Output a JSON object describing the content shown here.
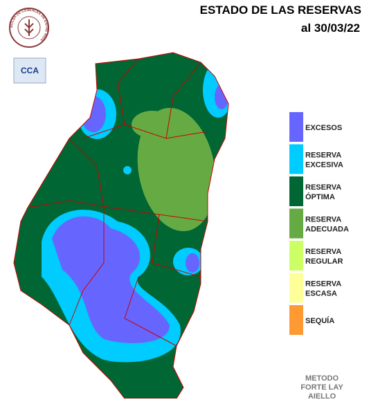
{
  "header": {
    "title": "ESTADO DE LAS RESERVAS",
    "date": "al 30/03/22"
  },
  "logos": {
    "bolsa": "BOLSA DE CEREALES DE ENTRE RIOS",
    "cca": "CCA"
  },
  "legend": [
    {
      "lines": [
        "EXCESOS"
      ],
      "color": "#6666ff"
    },
    {
      "lines": [
        "RESERVA",
        "EXCESIVA"
      ],
      "color": "#00ccff"
    },
    {
      "lines": [
        "RESERVA",
        "ÓPTIMA"
      ],
      "color": "#006633"
    },
    {
      "lines": [
        "RESERVA",
        "ADECUADA"
      ],
      "color": "#66aa44"
    },
    {
      "lines": [
        "RESERVA",
        "REGULAR"
      ],
      "color": "#ccff66"
    },
    {
      "lines": [
        "RESERVA",
        "ESCASA"
      ],
      "color": "#ffff99"
    },
    {
      "lines": [
        "SEQUÍA"
      ],
      "color": "#ff9933"
    }
  ],
  "method": [
    "METODO",
    "FORTE LAY",
    "AIELLO"
  ]
}
